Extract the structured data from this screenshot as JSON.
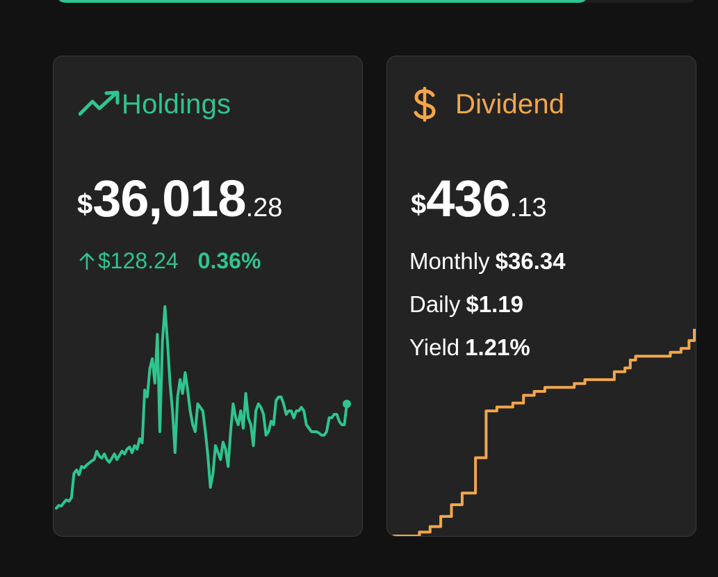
{
  "colors": {
    "accent_green": "#2ec58e",
    "accent_orange": "#f3a64c",
    "card_bg": "#232323",
    "page_bg": "#121212"
  },
  "top_bar": {
    "progress": 0.83
  },
  "holdings": {
    "icon": "trending-up-icon",
    "title": "Holdings",
    "amount_currency": "$",
    "amount_main": "36,018",
    "amount_cents": ".28",
    "change_icon": "arrow-up-icon",
    "change_amount": "$128.24",
    "change_percent": "0.36%"
  },
  "dividend": {
    "icon": "dollar-icon",
    "title": "Dividend",
    "amount_currency": "$",
    "amount_main": "436",
    "amount_cents": ".13",
    "monthly_label": "Monthly",
    "monthly_value": "$36.34",
    "daily_label": "Daily",
    "daily_value": "$1.19",
    "yield_label": "Yield",
    "yield_value": "1.21%"
  },
  "chart_data": [
    {
      "type": "line",
      "series": [
        {
          "values": [
            10,
            14,
            13,
            18,
            22,
            20,
            25,
            60,
            65,
            58,
            70,
            68,
            72,
            75,
            78,
            80,
            92,
            85,
            82,
            88,
            80,
            76,
            82,
            88,
            80,
            86,
            92,
            88,
            95,
            98,
            90,
            100,
            95,
            110,
            104,
            180,
            170,
            210,
            225,
            190,
            260,
            120,
            250,
            300,
            250,
            190,
            150,
            90,
            170,
            195,
            175,
            205,
            180,
            150,
            130,
            120,
            160,
            155,
            150,
            120,
            85,
            40,
            60,
            100,
            90,
            80,
            105,
            95,
            70,
            120,
            160,
            140,
            130,
            150,
            125,
            175,
            140,
            130,
            100,
            150,
            160,
            155,
            145,
            115,
            120,
            135,
            130,
            165,
            170,
            170,
            160,
            145,
            150,
            150,
            140,
            150,
            150,
            155,
            150,
            130,
            125,
            120,
            120,
            120,
            118,
            115,
            115,
            120,
            140,
            140,
            145,
            145,
            135,
            130,
            130,
            160
          ],
          "marker_last": true
        }
      ]
    },
    {
      "type": "line",
      "step": true,
      "series": [
        {
          "values": [
            0,
            0,
            0,
            0,
            0,
            0,
            0,
            0,
            0,
            0,
            5,
            5,
            5,
            5,
            12,
            12,
            12,
            12,
            25,
            25,
            25,
            25,
            40,
            40,
            40,
            40,
            55,
            55,
            55,
            55,
            55,
            100,
            100,
            100,
            100,
            160,
            160,
            160,
            160,
            165,
            165,
            165,
            165,
            165,
            165,
            170,
            170,
            170,
            170,
            180,
            180,
            180,
            180,
            185,
            185,
            185,
            185,
            190,
            190,
            190,
            190,
            190,
            190,
            190,
            190,
            190,
            190,
            190,
            195,
            195,
            195,
            195,
            200,
            200,
            200,
            200,
            200,
            200,
            200,
            200,
            200,
            200,
            200,
            210,
            210,
            210,
            210,
            215,
            215,
            225,
            225,
            230,
            230,
            230,
            230,
            230,
            230,
            230,
            230,
            230,
            230,
            230,
            230,
            230,
            235,
            235,
            235,
            235,
            240,
            240,
            240,
            250,
            250,
            265
          ]
        }
      ]
    }
  ]
}
